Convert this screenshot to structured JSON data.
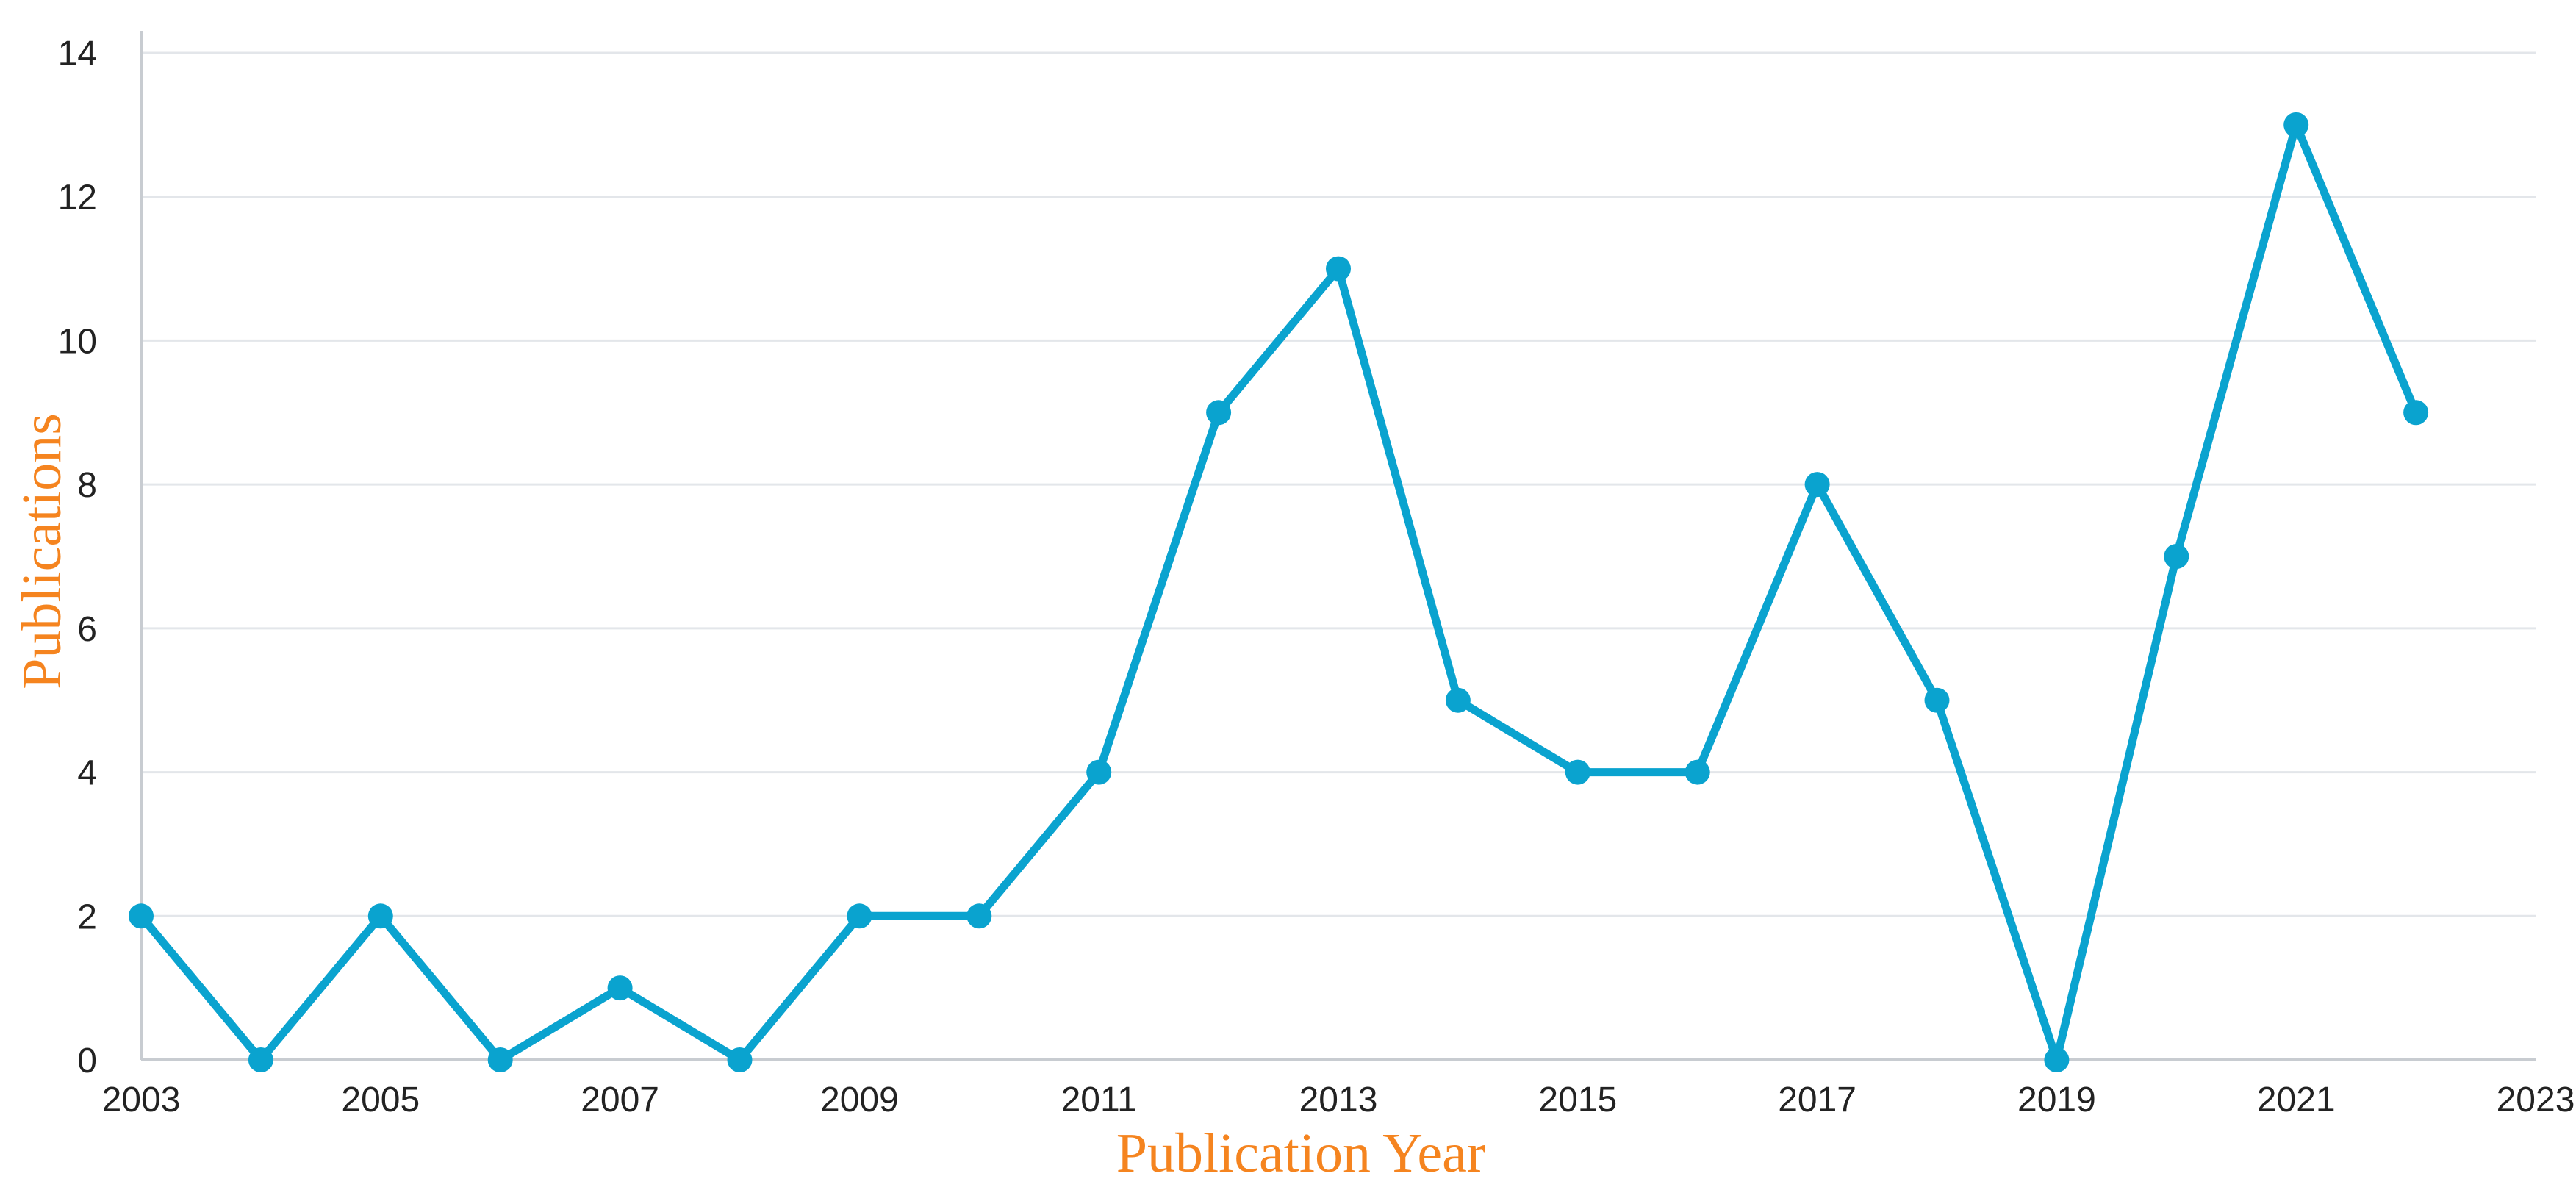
{
  "chart_data": {
    "type": "line",
    "title": "",
    "xlabel": "Publication Year",
    "ylabel": "Publications",
    "xlim": [
      2003,
      2023
    ],
    "ylim": [
      0,
      14
    ],
    "x_ticks": [
      "2003",
      "2005",
      "2007",
      "2009",
      "2011",
      "2013",
      "2015",
      "2017",
      "2019",
      "2021",
      "2023"
    ],
    "y_ticks": [
      "0",
      "2",
      "4",
      "6",
      "8",
      "10",
      "12",
      "14"
    ],
    "grid": true,
    "legend": "none",
    "series": [
      {
        "color": "#0aa3cf",
        "x": [
          2003,
          2004,
          2005,
          2006,
          2007,
          2008,
          2009,
          2010,
          2011,
          2012,
          2013,
          2014,
          2015,
          2016,
          2017,
          2018,
          2019,
          2020,
          2021,
          2022
        ],
        "values": [
          2,
          0,
          2,
          0,
          1,
          0,
          2,
          2,
          4,
          9,
          11,
          5,
          4,
          4,
          8,
          5,
          0,
          7,
          13,
          9
        ]
      }
    ]
  }
}
